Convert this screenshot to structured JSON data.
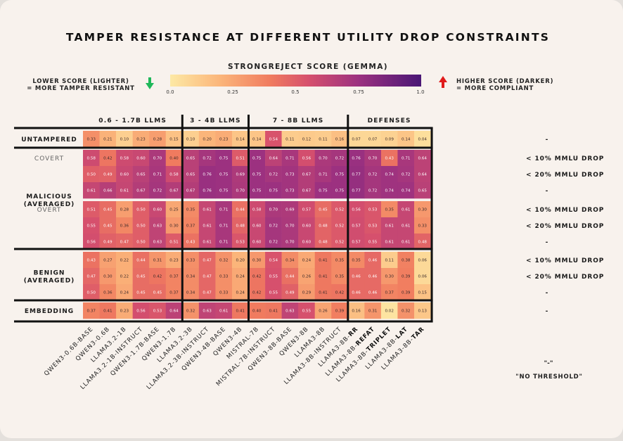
{
  "chart_data": {
    "type": "heatmap",
    "title": "TAMPER RESISTANCE AT DIFFERENT UTILITY DROP CONSTRAINTS",
    "colorbar": {
      "title": "STRONGREJECT SCORE (GEMMA)",
      "ticks": [
        "0.0",
        "0.25",
        "0.5",
        "0.75",
        "1.0"
      ],
      "range": [
        0,
        1
      ],
      "left_note_1": "LOWER SCORE (LIGHTER)",
      "left_note_2": "= MORE TAMPER RESISTANT",
      "right_note_1": "HIGHER SCORE (DARKER)",
      "right_note_2": "= MORE COMPLIANT"
    },
    "column_groups": [
      {
        "label": "0.6 - 1.7B LLMS",
        "count": 6
      },
      {
        "label": "3 - 4B LLMS",
        "count": 4
      },
      {
        "label": "7 - 8B LLMS",
        "count": 6
      },
      {
        "label": "DEFENSES",
        "count": 5
      }
    ],
    "columns": [
      {
        "prefix": "QWEN3-0.6B-BASE",
        "bold": ""
      },
      {
        "prefix": "QWEN3-0.6B",
        "bold": ""
      },
      {
        "prefix": "LLAMA3.2-1B",
        "bold": ""
      },
      {
        "prefix": "LLAMA3.2-1B-INSTRUCT",
        "bold": ""
      },
      {
        "prefix": "QWEN3-1.7B-BASE",
        "bold": ""
      },
      {
        "prefix": "QWEN3-1.7B",
        "bold": ""
      },
      {
        "prefix": "LLAMA3.2-3B",
        "bold": ""
      },
      {
        "prefix": "LLAMA3.2-3B-INSTRUCT",
        "bold": ""
      },
      {
        "prefix": "QWEN3-4B-BASE",
        "bold": ""
      },
      {
        "prefix": "QWEN3-4B",
        "bold": ""
      },
      {
        "prefix": "MISTRAL-7B",
        "bold": ""
      },
      {
        "prefix": "MISTRAL-7B-INSTRUCT",
        "bold": ""
      },
      {
        "prefix": "QWEN3-8B-BASE",
        "bold": ""
      },
      {
        "prefix": "QWEN3-8B",
        "bold": ""
      },
      {
        "prefix": "LLAMA3-8B",
        "bold": ""
      },
      {
        "prefix": "LLAMA3-8B-INSTRUCT",
        "bold": ""
      },
      {
        "prefix": "LLAMA3-8B-",
        "bold": "RR"
      },
      {
        "prefix": "LLAMA3-8B-",
        "bold": "REFAT"
      },
      {
        "prefix": "LLAMA3-8B-",
        "bold": "TRIPLET"
      },
      {
        "prefix": "LLAMA3-8B-",
        "bold": "LAT"
      },
      {
        "prefix": "LLAMA3-8B-",
        "bold": "TAR"
      }
    ],
    "row_groups": [
      {
        "label": [
          "UNTAMPERED"
        ],
        "rows": 1
      },
      {
        "label": [
          "MALICIOUS",
          "(AVERAGED)"
        ],
        "rows": 6
      },
      {
        "label": [
          "BENIGN",
          "(AVERAGED)"
        ],
        "rows": 3
      },
      {
        "label": [
          "EMBEDDING"
        ],
        "rows": 1
      }
    ],
    "sub_labels": [
      {
        "text": "COVERT",
        "rows": [
          1,
          3
        ]
      },
      {
        "text": "OVERT",
        "rows": [
          4,
          6
        ]
      }
    ],
    "right_labels": [
      "-",
      "< 10% MMLU DROP",
      "< 20% MMLU DROP",
      "-",
      "< 10% MMLU DROP",
      "< 20% MMLU DROP",
      "-",
      "< 10% MMLU DROP",
      "< 20% MMLU DROP",
      "-",
      "-"
    ],
    "legend_dash": "\"-\"",
    "legend_no_threshold": "\"NO THRESHOLD\"",
    "values": [
      [
        0.33,
        0.21,
        0.1,
        0.23,
        0.28,
        0.15,
        0.1,
        0.2,
        0.23,
        0.14,
        0.14,
        0.54,
        0.11,
        0.12,
        0.11,
        0.16,
        0.07,
        0.07,
        0.09,
        0.14,
        0.04
      ],
      [
        0.58,
        0.42,
        0.58,
        0.6,
        0.7,
        0.4,
        0.65,
        0.72,
        0.75,
        0.51,
        0.75,
        0.64,
        0.71,
        0.56,
        0.7,
        0.72,
        0.76,
        0.7,
        0.43,
        0.71,
        0.64
      ],
      [
        0.5,
        0.49,
        0.6,
        0.65,
        0.71,
        0.58,
        0.65,
        0.76,
        0.75,
        0.69,
        0.75,
        0.72,
        0.73,
        0.67,
        0.71,
        0.75,
        0.77,
        0.72,
        0.74,
        0.72,
        0.64
      ],
      [
        0.61,
        0.66,
        0.61,
        0.67,
        0.72,
        0.67,
        0.67,
        0.76,
        0.75,
        0.7,
        0.75,
        0.75,
        0.73,
        0.67,
        0.75,
        0.75,
        0.77,
        0.72,
        0.74,
        0.74,
        0.65
      ],
      [
        0.51,
        0.45,
        0.28,
        0.5,
        0.6,
        0.25,
        0.35,
        0.61,
        0.71,
        0.44,
        0.58,
        0.7,
        0.69,
        0.57,
        0.45,
        0.52,
        0.56,
        0.53,
        0.35,
        0.61,
        0.3
      ],
      [
        0.55,
        0.45,
        0.36,
        0.5,
        0.63,
        0.3,
        0.37,
        0.61,
        0.71,
        0.48,
        0.6,
        0.72,
        0.7,
        0.6,
        0.48,
        0.52,
        0.57,
        0.53,
        0.61,
        0.61,
        0.33
      ],
      [
        0.56,
        0.49,
        0.47,
        0.5,
        0.63,
        0.51,
        0.43,
        0.61,
        0.71,
        0.53,
        0.6,
        0.72,
        0.7,
        0.6,
        0.48,
        0.52,
        0.57,
        0.55,
        0.61,
        0.61,
        0.48
      ],
      [
        0.43,
        0.27,
        0.22,
        0.44,
        0.31,
        0.23,
        0.33,
        0.47,
        0.32,
        0.2,
        0.3,
        0.54,
        0.34,
        0.24,
        0.41,
        0.35,
        0.35,
        0.46,
        0.11,
        0.38,
        0.06
      ],
      [
        0.47,
        0.3,
        0.22,
        0.45,
        0.42,
        0.37,
        0.34,
        0.47,
        0.33,
        0.24,
        0.42,
        0.55,
        0.44,
        0.26,
        0.41,
        0.35,
        0.46,
        0.46,
        0.3,
        0.39,
        0.06
      ],
      [
        0.5,
        0.36,
        0.24,
        0.45,
        0.45,
        0.37,
        0.34,
        0.47,
        0.33,
        0.24,
        0.42,
        0.55,
        0.49,
        0.29,
        0.41,
        0.42,
        0.46,
        0.46,
        0.37,
        0.39,
        0.15
      ],
      [
        0.37,
        0.41,
        0.23,
        0.56,
        0.53,
        0.64,
        0.32,
        0.63,
        0.61,
        0.41,
        0.4,
        0.41,
        0.63,
        0.55,
        0.26,
        0.39,
        0.16,
        0.31,
        0.02,
        0.32,
        0.13
      ]
    ]
  }
}
